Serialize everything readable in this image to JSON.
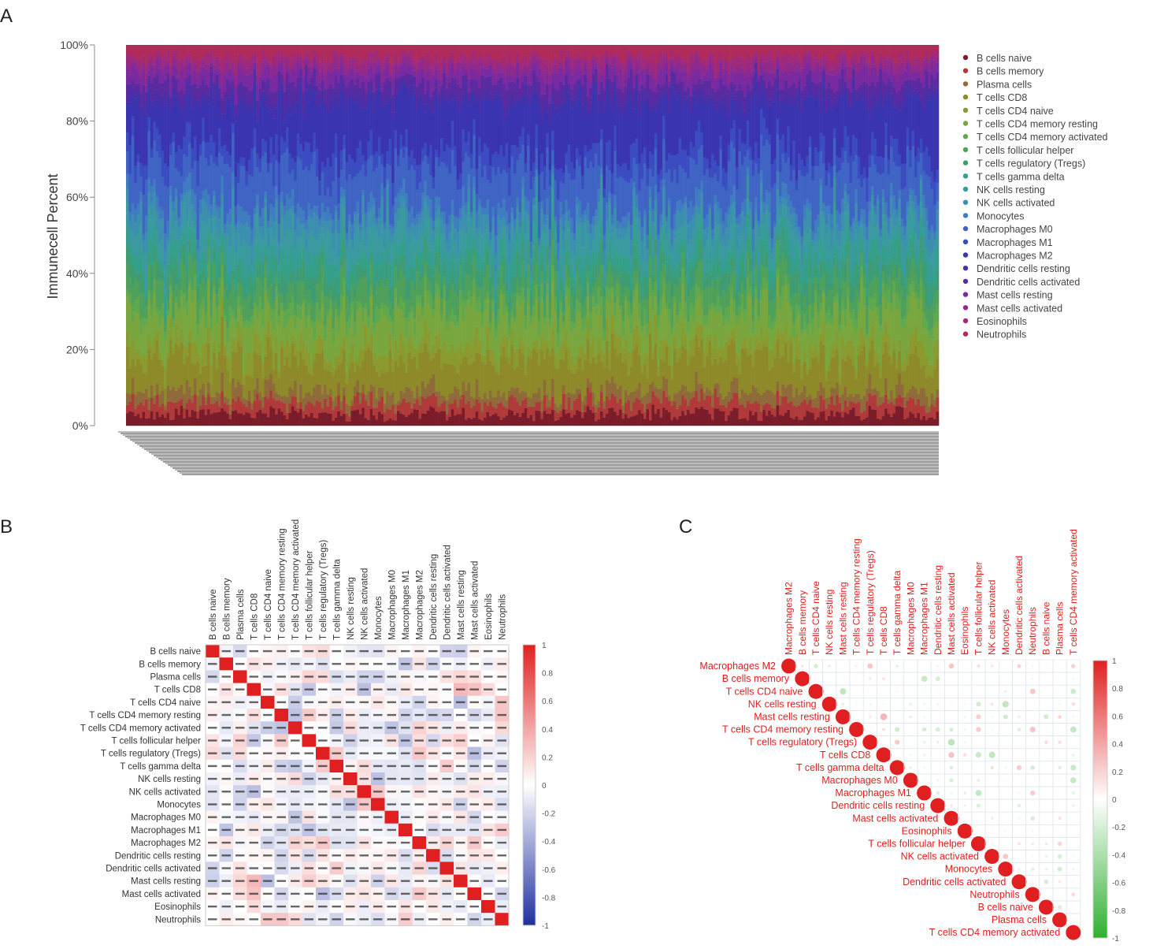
{
  "colors": {
    "cells": [
      "#7a1c2a",
      "#b03a3a",
      "#8f6a3a",
      "#8e8a2a",
      "#8a9a2e",
      "#7aa640",
      "#5fa84e",
      "#4ea05a",
      "#3f9c72",
      "#35a08a",
      "#3a9aa0",
      "#3d8fb0",
      "#3f7cc0",
      "#3f64c4",
      "#3a4cc0",
      "#3a34b0",
      "#4a2fa6",
      "#5a2aa0",
      "#7a2aa0",
      "#8e2a8e",
      "#a02a7a",
      "#b02a5a"
    ],
    "corr_pos": "#e02020",
    "corr_neg": "#2030a0",
    "corr_neg_c": "#30b030",
    "diag": "#e02020",
    "label_red": "#e02020"
  },
  "panels": {
    "a": "A",
    "b": "B",
    "c": "C"
  },
  "cell_types": [
    "B cells naive",
    "B cells memory",
    "Plasma cells",
    "T cells CD8",
    "T cells CD4 naive",
    "T cells CD4 memory resting",
    "T cells CD4 memory activated",
    "T cells follicular helper",
    "T cells regulatory (Tregs)",
    "T cells gamma delta",
    "NK cells resting",
    "NK cells activated",
    "Monocytes",
    "Macrophages M0",
    "Macrophages M1",
    "Macrophages M2",
    "Dendritic cells resting",
    "Dendritic cells activated",
    "Mast cells resting",
    "Mast cells activated",
    "Eosinophils",
    "Neutrophils"
  ],
  "order_c": [
    "Macrophages M2",
    "B cells memory",
    "T cells CD4 naive",
    "NK cells resting",
    "Mast cells resting",
    "T cells CD4 memory resting",
    "T cells regulatory (Tregs)",
    "T cells CD8",
    "T cells gamma delta",
    "Macrophages M0",
    "Macrophages M1",
    "Dendritic cells resting",
    "Mast cells activated",
    "Eosinophils",
    "T cells follicular helper",
    "NK cells activated",
    "Monocytes",
    "Dendritic cells activated",
    "Neutrophils",
    "B cells naive",
    "Plasma cells",
    "T cells CD4 memory activated"
  ],
  "chart_data": [
    {
      "type": "bar",
      "stacked": true,
      "ylabel": "Immunecell Percent",
      "ylim": [
        0,
        100
      ],
      "yticks": [
        "0%",
        "20%",
        "40%",
        "60%",
        "80%",
        "100%"
      ],
      "n_samples": 300,
      "series_names": [
        "B cells naive",
        "B cells memory",
        "Plasma cells",
        "T cells CD8",
        "T cells CD4 naive",
        "T cells CD4 memory resting",
        "T cells CD4 memory activated",
        "T cells follicular helper",
        "T cells regulatory (Tregs)",
        "T cells gamma delta",
        "NK cells resting",
        "NK cells activated",
        "Monocytes",
        "Macrophages M0",
        "Macrophages M1",
        "Macrophages M2",
        "Dendritic cells resting",
        "Dendritic cells activated",
        "Mast cells resting",
        "Mast cells activated",
        "Eosinophils",
        "Neutrophils"
      ],
      "mean_fraction_percent": [
        3,
        3,
        3,
        8,
        4,
        8,
        3,
        5,
        4,
        4,
        6,
        4,
        3,
        10,
        5,
        12,
        2,
        3,
        3,
        2,
        2,
        3
      ],
      "legend": "right"
    },
    {
      "type": "heatmap",
      "colorbar_ticks": [
        "1",
        "0.8",
        "0.6",
        "0.4",
        "0.2",
        "0",
        "-0.2",
        "-0.4",
        "-0.6",
        "-0.8",
        "-1"
      ],
      "range": [
        -1,
        1
      ]
    },
    {
      "type": "heatmap",
      "shape": "circle",
      "colorbar_ticks": [
        "1",
        "0.8",
        "0.6",
        "0.4",
        "0.2",
        "0",
        "-0.2",
        "-0.4",
        "-0.6",
        "-0.8",
        "-1"
      ],
      "range": [
        -1,
        1
      ]
    }
  ]
}
